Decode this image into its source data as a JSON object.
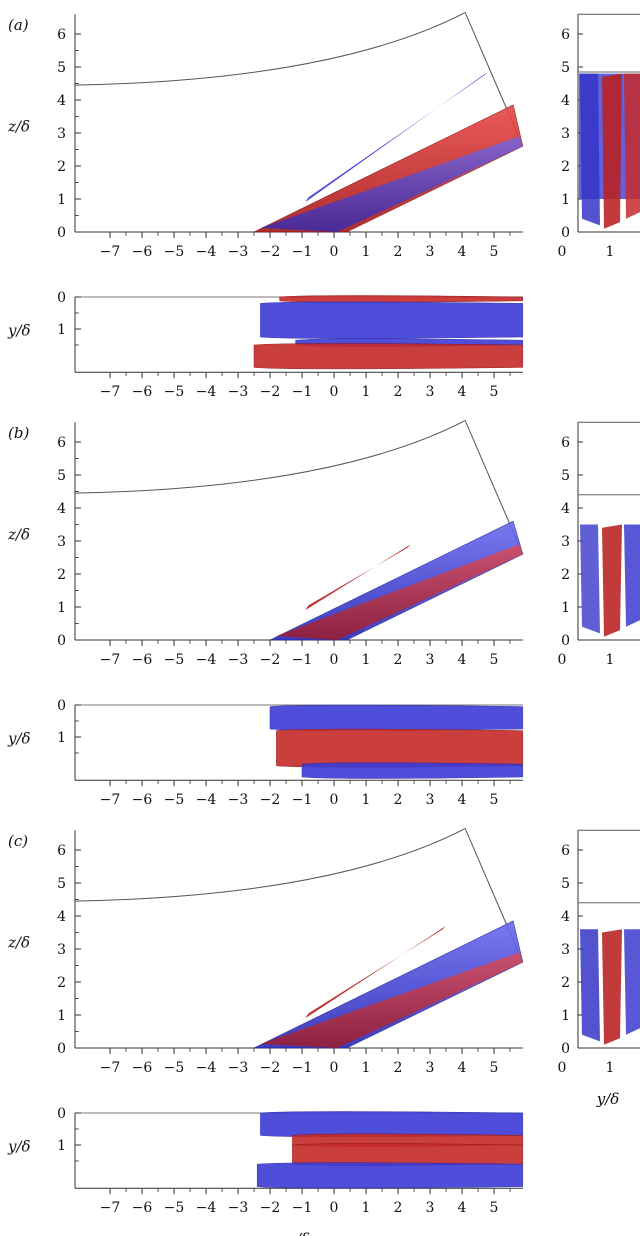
{
  "figure": {
    "panels": [
      {
        "label": "(a)"
      },
      {
        "label": "(b)"
      },
      {
        "label": "(c)"
      }
    ],
    "x_ticks": [
      "−7",
      "−6",
      "−5",
      "−4",
      "−3",
      "−2",
      "−1",
      "0",
      "1",
      "2",
      "3",
      "4",
      "5"
    ],
    "z_ticks": [
      "0",
      "1",
      "2",
      "3",
      "4",
      "5",
      "6"
    ],
    "y_ticks": [
      "0",
      "1"
    ],
    "side_x_ticks": [
      "0",
      "1"
    ],
    "axis_labels": {
      "z": "z/δ",
      "y": "y/δ",
      "x": "x/δ",
      "side_x": "y/δ"
    },
    "colors": {
      "positive": "#d42a2a",
      "negative": "#3b3bd8",
      "outline": "#555555"
    }
  }
}
